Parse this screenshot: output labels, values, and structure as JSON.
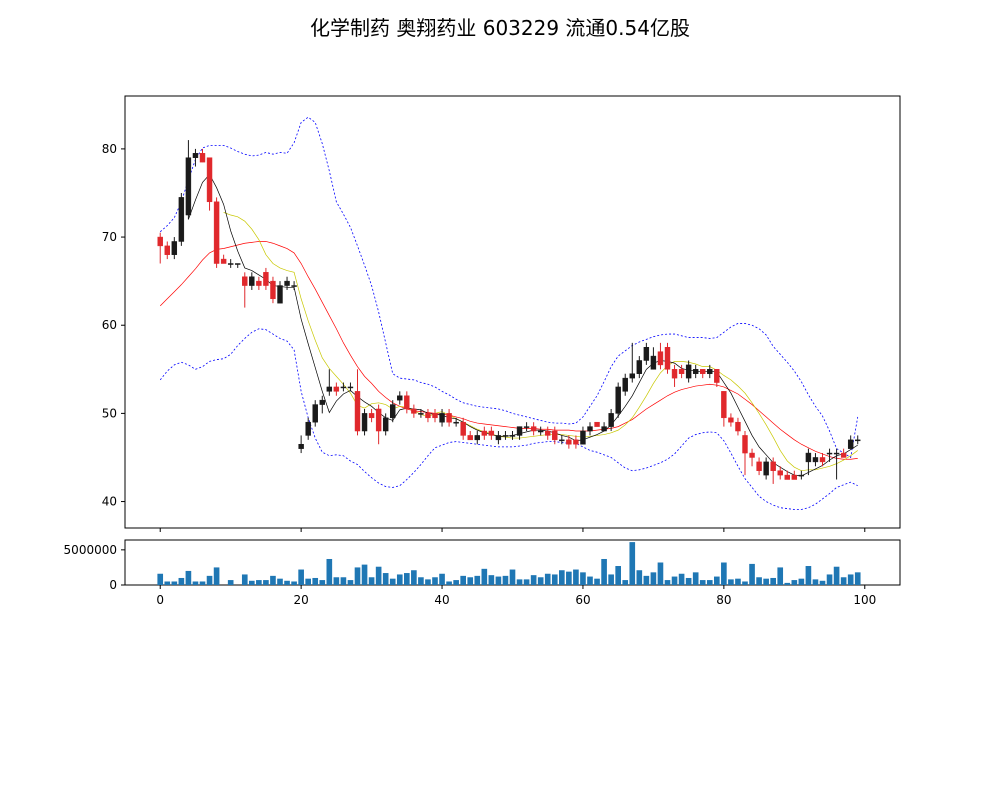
{
  "chart_data": {
    "title": "化学制药 奥翔药业 603229 流通0.54亿股",
    "type": "candlestick",
    "x": [
      0,
      1,
      2,
      3,
      4,
      5,
      6,
      7,
      8,
      9,
      10,
      11,
      12,
      13,
      14,
      15,
      16,
      17,
      18,
      19,
      20,
      21,
      22,
      23,
      24,
      25,
      26,
      27,
      28,
      29,
      30,
      31,
      32,
      33,
      34,
      35,
      36,
      37,
      38,
      39,
      40,
      41,
      42,
      43,
      44,
      45,
      46,
      47,
      48,
      49,
      50,
      51,
      52,
      53,
      54,
      55,
      56,
      57,
      58,
      59,
      60,
      61,
      62,
      63,
      64,
      65,
      66,
      67,
      68,
      69,
      70,
      71,
      72,
      73,
      74,
      75,
      76,
      77,
      78,
      79,
      80,
      81,
      82,
      83,
      84,
      85,
      86,
      87,
      88,
      89,
      90,
      91,
      92,
      93,
      94,
      95,
      96,
      97,
      98,
      99
    ],
    "open": [
      70.0,
      69.0,
      68.0,
      69.5,
      72.5,
      79.0,
      79.5,
      79.0,
      74.0,
      67.5,
      67.0,
      67.0,
      65.5,
      64.5,
      65.0,
      66.0,
      65.0,
      62.5,
      64.5,
      64.5,
      46.0,
      47.5,
      49.0,
      51.0,
      52.5,
      53.0,
      53.0,
      53.0,
      52.5,
      48.0,
      50.0,
      50.5,
      48.0,
      49.5,
      51.5,
      52.0,
      50.5,
      50.0,
      50.0,
      50.0,
      49.0,
      50.0,
      49.0,
      49.0,
      47.5,
      47.0,
      48.0,
      48.0,
      47.0,
      47.5,
      47.5,
      47.5,
      48.5,
      48.5,
      48.0,
      48.0,
      48.0,
      47.0,
      47.0,
      47.0,
      46.5,
      48.0,
      49.0,
      48.0,
      48.5,
      50.0,
      52.5,
      54.0,
      54.5,
      56.0,
      55.0,
      57.0,
      57.5,
      55.0,
      55.0,
      54.0,
      54.5,
      55.0,
      54.5,
      55.0,
      52.5,
      49.5,
      49.0,
      47.5,
      45.5,
      44.5,
      43.0,
      44.5,
      43.5,
      43.0,
      43.0,
      43.0,
      44.5,
      44.5,
      45.0,
      45.5,
      45.5,
      45.5,
      46.0,
      47.0
    ],
    "close": [
      69.0,
      68.0,
      69.5,
      74.5,
      79.0,
      79.5,
      78.5,
      74.0,
      67.0,
      67.0,
      67.0,
      67.0,
      64.5,
      65.5,
      64.5,
      64.5,
      63.0,
      64.5,
      65.0,
      64.5,
      46.5,
      49.0,
      51.0,
      51.5,
      53.0,
      52.5,
      53.0,
      53.0,
      48.0,
      50.0,
      49.5,
      48.0,
      49.5,
      51.0,
      52.0,
      50.5,
      50.0,
      50.0,
      49.5,
      49.5,
      50.0,
      49.0,
      49.0,
      47.5,
      47.0,
      47.5,
      47.5,
      47.5,
      47.5,
      47.5,
      47.5,
      48.5,
      48.5,
      48.0,
      48.0,
      47.5,
      47.0,
      47.0,
      46.5,
      46.5,
      48.0,
      48.5,
      48.5,
      48.5,
      50.0,
      53.0,
      54.0,
      54.5,
      56.0,
      57.5,
      56.5,
      55.5,
      55.0,
      54.0,
      54.5,
      55.5,
      55.0,
      54.5,
      55.0,
      53.5,
      49.5,
      49.0,
      48.0,
      45.5,
      45.0,
      43.5,
      44.5,
      43.5,
      43.0,
      42.5,
      42.5,
      43.0,
      45.5,
      45.0,
      44.5,
      45.5,
      45.5,
      45.0,
      47.0,
      47.0
    ],
    "high": [
      70.5,
      69.5,
      70.0,
      75.0,
      81.0,
      80.0,
      80.0,
      79.0,
      74.5,
      68.0,
      67.5,
      67.0,
      66.0,
      66.0,
      65.5,
      66.5,
      65.5,
      65.0,
      65.5,
      65.0,
      47.5,
      49.5,
      51.5,
      52.0,
      55.0,
      53.5,
      53.5,
      53.5,
      55.0,
      50.5,
      50.5,
      51.0,
      50.0,
      51.5,
      52.5,
      52.5,
      51.0,
      50.5,
      50.5,
      50.5,
      50.5,
      50.5,
      49.5,
      49.5,
      48.0,
      48.0,
      48.5,
      48.5,
      48.0,
      48.0,
      48.0,
      48.5,
      49.0,
      49.0,
      48.5,
      48.5,
      48.5,
      47.5,
      47.5,
      47.5,
      48.5,
      49.0,
      49.0,
      49.0,
      50.5,
      53.5,
      54.5,
      58.0,
      56.5,
      58.0,
      57.5,
      58.0,
      58.0,
      55.5,
      55.5,
      56.0,
      55.5,
      55.0,
      55.5,
      55.0,
      52.5,
      50.0,
      49.5,
      48.0,
      46.0,
      45.0,
      45.0,
      45.0,
      44.0,
      43.5,
      43.5,
      43.5,
      46.0,
      45.5,
      45.5,
      46.0,
      46.0,
      46.0,
      47.5,
      47.5
    ],
    "low": [
      67.0,
      67.5,
      67.5,
      69.0,
      72.0,
      78.0,
      78.5,
      73.0,
      66.5,
      67.0,
      66.5,
      66.5,
      62.0,
      64.0,
      64.0,
      64.0,
      62.5,
      62.5,
      64.0,
      64.0,
      45.5,
      47.0,
      48.5,
      50.0,
      52.0,
      52.0,
      52.5,
      52.5,
      47.5,
      47.5,
      49.0,
      46.5,
      47.5,
      49.0,
      51.0,
      50.0,
      49.5,
      49.5,
      49.0,
      49.0,
      48.5,
      48.5,
      48.5,
      47.0,
      47.0,
      46.5,
      47.0,
      47.0,
      46.5,
      47.0,
      47.0,
      47.0,
      48.0,
      47.5,
      47.5,
      47.0,
      46.5,
      46.5,
      46.0,
      46.0,
      46.5,
      47.5,
      48.5,
      48.0,
      48.0,
      49.5,
      52.0,
      53.5,
      54.0,
      55.5,
      55.0,
      55.0,
      54.5,
      53.0,
      54.0,
      53.5,
      54.0,
      54.0,
      54.0,
      53.0,
      48.5,
      48.5,
      47.5,
      43.0,
      44.0,
      43.0,
      42.5,
      42.0,
      42.5,
      42.5,
      42.5,
      42.5,
      43.0,
      44.0,
      44.0,
      44.5,
      42.5,
      45.0,
      46.0,
      46.5
    ],
    "volume": [
      1600000,
      500000,
      500000,
      1000000,
      2000000,
      500000,
      500000,
      1300000,
      2500000,
      0,
      700000,
      0,
      1500000,
      600000,
      700000,
      700000,
      1300000,
      900000,
      600000,
      500000,
      2200000,
      900000,
      1000000,
      700000,
      3700000,
      1100000,
      1100000,
      700000,
      2500000,
      2900000,
      1100000,
      2600000,
      1700000,
      900000,
      1500000,
      1700000,
      2100000,
      1100000,
      800000,
      1100000,
      1600000,
      500000,
      700000,
      1300000,
      1100000,
      1300000,
      2300000,
      1400000,
      1200000,
      1300000,
      2200000,
      800000,
      800000,
      1400000,
      1100000,
      1600000,
      1500000,
      2100000,
      1900000,
      2200000,
      1800000,
      1200000,
      900000,
      3700000,
      1500000,
      2700000,
      700000,
      6100000,
      2100000,
      1300000,
      1800000,
      3200000,
      700000,
      1200000,
      1600000,
      1000000,
      1800000,
      700000,
      700000,
      1200000,
      3200000,
      800000,
      900000,
      500000,
      3000000,
      1100000,
      900000,
      1000000,
      2500000,
      300000,
      700000,
      900000,
      2700000,
      800000,
      600000,
      1500000,
      2600000,
      1100000,
      1500000,
      1800000
    ],
    "ma5": [
      null,
      null,
      null,
      null,
      72.0,
      74.2,
      76.2,
      77.1,
      75.6,
      73.7,
      70.7,
      68.4,
      66.5,
      66.2,
      65.7,
      65.2,
      64.5,
      64.4,
      64.3,
      64.3,
      60.7,
      57.9,
      55.2,
      52.5,
      50.1,
      51.4,
      52.2,
      52.6,
      51.9,
      51.3,
      50.8,
      50.1,
      49.5,
      49.2,
      50.4,
      50.6,
      50.5,
      50.4,
      50.0,
      49.9,
      49.8,
      49.5,
      49.4,
      49.0,
      48.5,
      48.1,
      47.8,
      47.6,
      47.4,
      47.4,
      47.5,
      47.7,
      47.9,
      48.1,
      48.1,
      48.0,
      47.8,
      47.5,
      47.3,
      46.9,
      47.0,
      47.3,
      47.6,
      48.0,
      48.7,
      49.7,
      50.8,
      52.0,
      53.5,
      55.0,
      55.7,
      56.0,
      55.9,
      55.7,
      55.1,
      54.9,
      54.8,
      54.7,
      54.8,
      54.7,
      53.5,
      52.3,
      50.7,
      49.1,
      47.5,
      46.2,
      45.3,
      44.4,
      43.9,
      43.4,
      43.0,
      42.9,
      43.3,
      43.7,
      44.1,
      44.7,
      45.2,
      45.4,
      45.9,
      46.4
    ],
    "ma10": [
      null,
      null,
      null,
      null,
      null,
      null,
      null,
      null,
      null,
      72.8,
      72.5,
      72.3,
      71.8,
      70.9,
      69.7,
      68.0,
      67.0,
      66.5,
      66.2,
      66.0,
      63.0,
      60.5,
      58.3,
      56.3,
      55.1,
      54.2,
      53.3,
      52.3,
      50.9,
      50.6,
      51.1,
      51.2,
      51.0,
      50.5,
      50.8,
      50.7,
      50.3,
      49.9,
      49.6,
      50.0,
      50.2,
      49.8,
      49.4,
      49.0,
      48.6,
      48.2,
      47.9,
      47.7,
      47.4,
      47.3,
      47.2,
      47.2,
      47.3,
      47.4,
      47.5,
      47.6,
      47.6,
      47.6,
      47.5,
      47.4,
      47.3,
      47.4,
      47.5,
      47.6,
      47.8,
      48.1,
      48.7,
      49.5,
      50.7,
      52.0,
      53.4,
      54.6,
      55.4,
      55.9,
      55.9,
      55.8,
      55.6,
      55.3,
      55.3,
      54.9,
      54.3,
      53.8,
      53.1,
      52.3,
      51.2,
      50.0,
      48.7,
      47.3,
      45.8,
      44.6,
      43.9,
      43.5,
      43.6,
      43.6,
      43.8,
      44.0,
      44.3,
      44.7,
      45.2,
      45.8
    ],
    "ma20": [
      62.2,
      63.0,
      63.8,
      64.6,
      65.5,
      66.4,
      67.4,
      68.2,
      68.6,
      68.7,
      68.9,
      69.1,
      69.3,
      69.4,
      69.5,
      69.5,
      69.3,
      69.0,
      68.7,
      68.2,
      67.0,
      65.5,
      64.1,
      62.6,
      61.1,
      59.6,
      58.0,
      56.6,
      55.3,
      54.2,
      53.4,
      52.5,
      51.8,
      51.2,
      50.8,
      50.5,
      50.3,
      50.2,
      50.1,
      50.0,
      49.9,
      49.8,
      49.6,
      49.4,
      49.1,
      48.9,
      48.8,
      48.7,
      48.6,
      48.5,
      48.4,
      48.3,
      48.3,
      48.3,
      48.2,
      48.2,
      48.1,
      48.1,
      48.1,
      48.0,
      48.0,
      48.0,
      48.1,
      48.2,
      48.3,
      48.5,
      48.9,
      49.3,
      49.9,
      50.5,
      51.0,
      51.5,
      52.0,
      52.4,
      52.7,
      52.9,
      53.1,
      53.2,
      53.3,
      53.2,
      53.0,
      52.6,
      52.2,
      51.6,
      51.0,
      50.3,
      49.6,
      48.9,
      48.2,
      47.6,
      47.0,
      46.5,
      46.1,
      45.7,
      45.4,
      45.1,
      44.9,
      44.8,
      44.8,
      44.9
    ],
    "boll_upper": [
      70.6,
      71.3,
      72.2,
      74.0,
      76.5,
      78.8,
      80.1,
      80.4,
      80.4,
      80.4,
      80.1,
      79.7,
      79.4,
      79.2,
      79.3,
      79.6,
      79.4,
      79.6,
      79.5,
      80.7,
      83.0,
      83.6,
      83.0,
      80.6,
      77.5,
      74.0,
      72.6,
      71.1,
      69.0,
      66.8,
      64.5,
      61.5,
      58.0,
      54.5,
      54.0,
      53.9,
      53.8,
      53.5,
      53.3,
      53.0,
      52.5,
      52.1,
      51.6,
      51.2,
      51.0,
      50.8,
      50.7,
      50.6,
      50.5,
      50.3,
      50.0,
      49.8,
      49.6,
      49.4,
      49.2,
      49.0,
      48.9,
      48.9,
      48.8,
      48.9,
      49.6,
      50.8,
      52.0,
      53.6,
      55.3,
      56.5,
      57.1,
      57.7,
      58.1,
      58.4,
      58.7,
      58.9,
      59.0,
      59.0,
      58.8,
      58.6,
      58.6,
      58.6,
      58.5,
      58.6,
      59.2,
      59.8,
      60.2,
      60.2,
      60.0,
      59.6,
      58.9,
      57.6,
      56.7,
      55.8,
      54.8,
      53.6,
      52.1,
      50.8,
      49.7,
      48.0,
      46.0,
      45.5,
      45.0,
      49.6
    ],
    "boll_lower": [
      53.8,
      54.8,
      55.5,
      55.8,
      55.5,
      55.0,
      55.3,
      55.9,
      56.1,
      56.2,
      56.7,
      57.7,
      58.5,
      59.2,
      59.6,
      59.5,
      59.0,
      58.5,
      58.2,
      57.2,
      52.5,
      49.5,
      47.2,
      45.6,
      45.2,
      45.3,
      45.2,
      44.6,
      44.2,
      43.4,
      42.7,
      42.1,
      41.7,
      41.6,
      41.8,
      42.5,
      43.3,
      44.2,
      45.2,
      46.1,
      46.4,
      46.7,
      46.8,
      46.7,
      46.6,
      46.5,
      46.4,
      46.3,
      46.2,
      46.2,
      46.2,
      46.3,
      46.4,
      46.6,
      46.7,
      46.8,
      46.8,
      46.7,
      46.6,
      46.6,
      46.2,
      45.8,
      45.6,
      45.3,
      45.0,
      44.4,
      43.8,
      43.5,
      43.6,
      43.8,
      44.1,
      44.4,
      44.8,
      45.4,
      46.3,
      47.2,
      47.6,
      47.8,
      47.9,
      47.8,
      46.9,
      45.5,
      44.0,
      42.6,
      41.6,
      40.6,
      40.0,
      39.6,
      39.3,
      39.2,
      39.1,
      39.1,
      39.3,
      39.7,
      40.3,
      40.9,
      41.6,
      41.9,
      42.2,
      41.8
    ],
    "ylim": [
      37,
      86
    ],
    "yticks": [
      40,
      50,
      60,
      70,
      80
    ],
    "xlim": [
      -5,
      105
    ],
    "xticks": [
      0,
      20,
      40,
      60,
      80,
      100
    ],
    "volume_ticks": [
      0,
      5000000
    ],
    "volume_ylim": [
      0,
      6400000
    ],
    "colors": {
      "up": "#e0282c",
      "down": "#1a1a1a",
      "ma5": "#000000",
      "ma10": "#c8c800",
      "ma20": "#ff0000",
      "boll": "#0000ff",
      "volume": "#1f77b4"
    },
    "grid": false
  }
}
